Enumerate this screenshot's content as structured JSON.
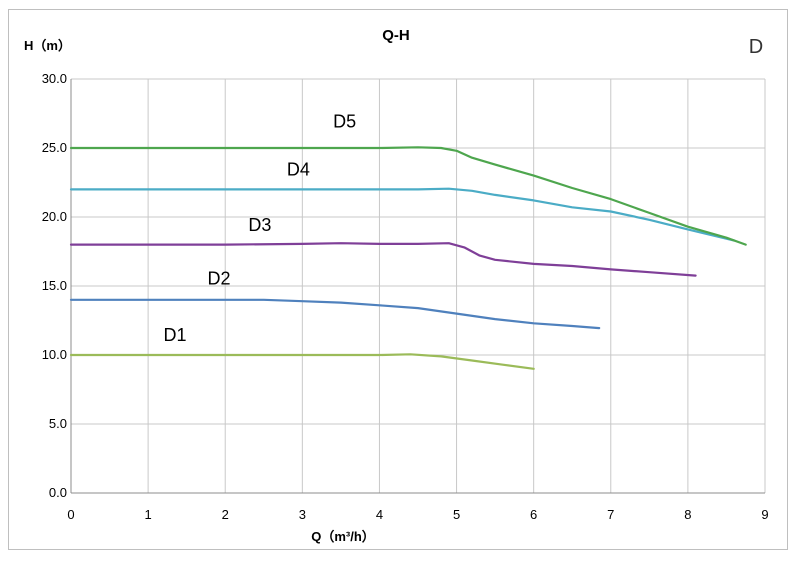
{
  "chart_data": {
    "type": "line",
    "title": "Q-H",
    "corner_label": "D",
    "xlabel": "Q（m³/h）",
    "ylabel": "H（m）",
    "xlim": [
      0,
      9
    ],
    "ylim": [
      0,
      30
    ],
    "x_ticks": [
      "0",
      "1",
      "2",
      "3",
      "4",
      "5",
      "6",
      "7",
      "8",
      "9"
    ],
    "y_ticks": [
      "0.0",
      "5.0",
      "10.0",
      "15.0",
      "20.0",
      "25.0",
      "30.0"
    ],
    "grid": true,
    "series": [
      {
        "name": "D1",
        "color": "#9bbb59",
        "x": [
          0,
          1,
          2,
          3,
          4,
          4.4,
          4.8,
          5.2,
          5.6,
          6.0
        ],
        "y": [
          10.0,
          10.0,
          10.0,
          10.0,
          10.0,
          10.05,
          9.9,
          9.6,
          9.3,
          9.0
        ]
      },
      {
        "name": "D2",
        "color": "#4f81bd",
        "x": [
          0,
          1,
          2,
          2.5,
          3,
          3.5,
          4,
          4.5,
          5,
          5.5,
          6,
          6.5,
          6.85
        ],
        "y": [
          14.0,
          14.0,
          14.0,
          14.0,
          13.9,
          13.8,
          13.6,
          13.4,
          13.0,
          12.6,
          12.3,
          12.1,
          11.95
        ]
      },
      {
        "name": "D3",
        "color": "#7f3f98",
        "x": [
          0,
          1,
          2,
          3,
          3.5,
          4,
          4.5,
          4.9,
          5.1,
          5.3,
          5.5,
          6,
          6.5,
          7,
          7.5,
          8.1
        ],
        "y": [
          18.0,
          18.0,
          18.0,
          18.05,
          18.1,
          18.05,
          18.05,
          18.1,
          17.8,
          17.2,
          16.9,
          16.6,
          16.45,
          16.2,
          16.0,
          15.75
        ]
      },
      {
        "name": "D4",
        "color": "#4bacc6",
        "x": [
          0,
          1,
          2,
          3,
          4,
          4.5,
          4.9,
          5.2,
          5.5,
          6,
          6.5,
          7,
          7.5,
          8,
          8.6
        ],
        "y": [
          22.0,
          22.0,
          22.0,
          22.0,
          22.0,
          22.0,
          22.05,
          21.9,
          21.6,
          21.2,
          20.7,
          20.4,
          19.8,
          19.1,
          18.3
        ]
      },
      {
        "name": "D5",
        "color": "#4ea64e",
        "x": [
          0,
          1,
          2,
          3,
          4,
          4.5,
          4.8,
          5.0,
          5.2,
          5.5,
          6,
          6.5,
          7,
          7.5,
          8,
          8.5,
          8.75
        ],
        "y": [
          25.0,
          25.0,
          25.0,
          25.0,
          25.0,
          25.05,
          25.0,
          24.8,
          24.3,
          23.8,
          23.0,
          22.1,
          21.3,
          20.3,
          19.3,
          18.5,
          18.0
        ]
      }
    ],
    "series_label_positions": [
      {
        "name": "D1",
        "x": 1.2,
        "y": 11.0
      },
      {
        "name": "D2",
        "x": 1.77,
        "y": 15.1
      },
      {
        "name": "D3",
        "x": 2.3,
        "y": 19.0
      },
      {
        "name": "D4",
        "x": 2.8,
        "y": 23.0
      },
      {
        "name": "D5",
        "x": 3.4,
        "y": 26.5
      }
    ]
  }
}
